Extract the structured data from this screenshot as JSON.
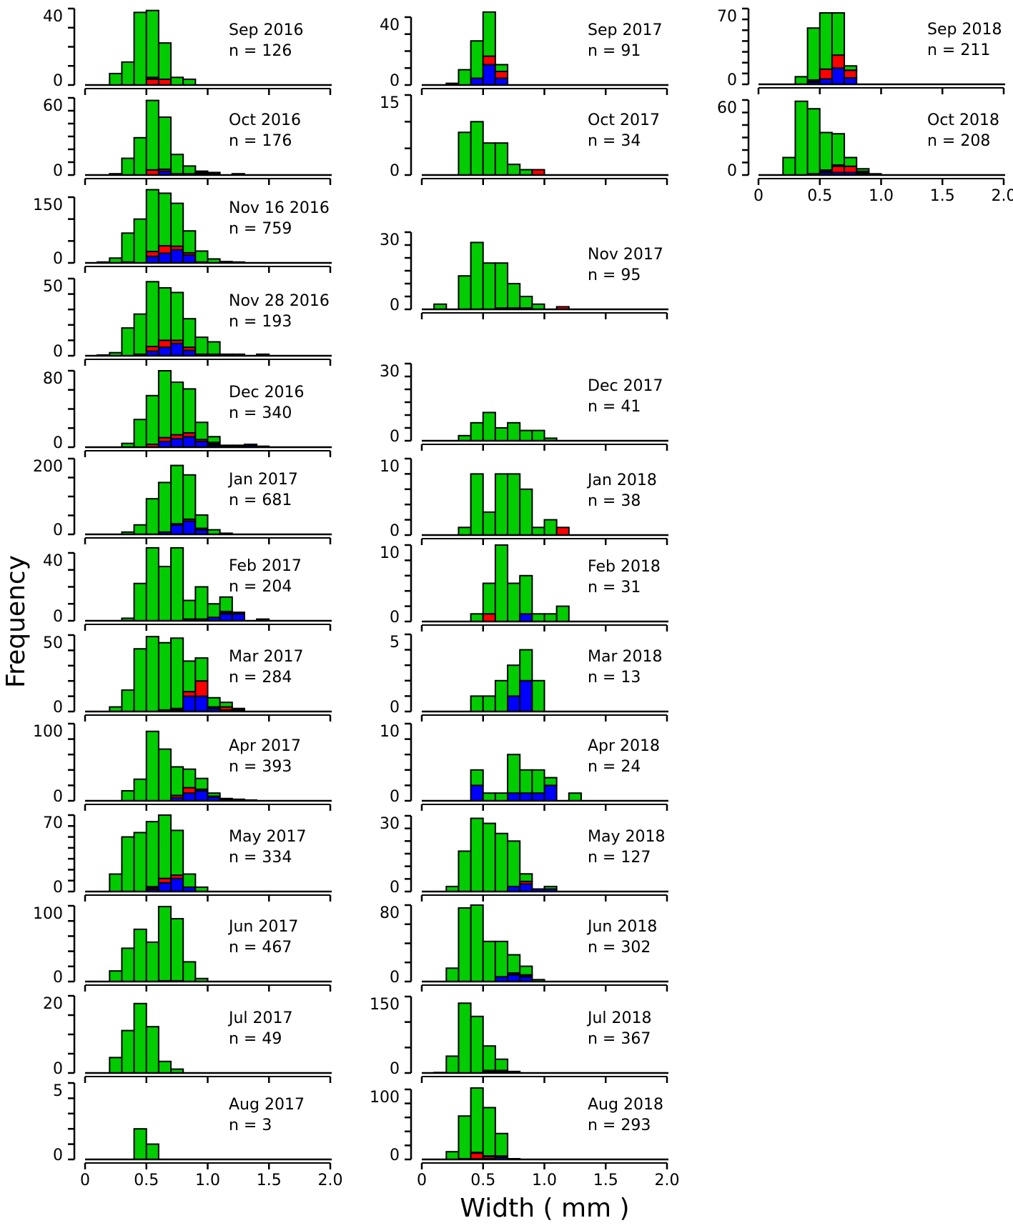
{
  "chart_data": {
    "type": "bar",
    "subtype": "stacked-histogram-panels",
    "xlabel": "Width ( mm )",
    "ylabel": "Frequency",
    "xlim": [
      0,
      2.0
    ],
    "bin_width": 0.1,
    "xtick_labels": [
      "0",
      "0.5",
      "1.0",
      "1.5",
      "2.0"
    ],
    "colors": {
      "green": "#00cc00",
      "red": "#ff0000",
      "blue": "#0000ff",
      "black": "#000000"
    },
    "panels": [
      {
        "label": "Sep 2016",
        "n": "n = 126",
        "ymax": 40,
        "ystep": 10,
        "start": 0.2,
        "total": [
          6,
          12,
          38,
          39,
          22,
          4,
          3
        ],
        "blue": {},
        "red": {
          "0.5": 3,
          "0.6": 3
        },
        "black": {
          "0.5": 1
        }
      },
      {
        "label": "Oct 2016",
        "n": "n = 176",
        "ymax": 60,
        "ystep": 10,
        "start": 0.2,
        "total": [
          1,
          13,
          29,
          58,
          45,
          16,
          7,
          3,
          2,
          0,
          1
        ],
        "blue": {
          "0.6": 3
        },
        "red": {
          "0.5": 4,
          "0.6": 1.5,
          "0.8": 1
        },
        "black": {
          "0.7": 1,
          "0.9": 3,
          "1.0": 2,
          "1.2": 1
        }
      },
      {
        "label": "Nov 16 2016",
        "n": "n = 759",
        "ymax": 150,
        "ystep": 50,
        "start": 0.1,
        "total": [
          2,
          11,
          68,
          100,
          167,
          159,
          136,
          73,
          27,
          9,
          3,
          2
        ],
        "blue": {
          "0.5": 15,
          "0.6": 22,
          "0.7": 30,
          "0.8": 18
        },
        "red": {
          "0.3": 2,
          "0.5": 11,
          "0.6": 17,
          "0.7": 8,
          "0.8": 5,
          "0.9": 2
        },
        "black": {}
      },
      {
        "label": "Nov 28 2016",
        "n": "n = 193",
        "ymax": 50,
        "ystep": 10,
        "start": 0.1,
        "total": [
          0.5,
          2,
          18,
          27,
          48,
          44,
          41,
          24,
          12,
          9,
          1,
          1,
          0,
          1
        ],
        "blue": {
          "0.5": 3,
          "0.6": 5.5,
          "0.7": 8,
          "0.8": 3.5
        },
        "red": {
          "0.5": 3,
          "0.6": 4.5,
          "0.7": 2,
          "0.8": 2
        },
        "black": {
          "0.1": 0.5,
          "0.4": 1,
          "0.9": 1,
          "1.0": 1,
          "1.1": 1,
          "1.2": 1,
          "1.4": 1
        }
      },
      {
        "label": "Dec 2016",
        "n": "n = 340",
        "ymax": 80,
        "ystep": 20,
        "start": 0.3,
        "total": [
          4,
          29,
          54,
          80,
          68,
          61,
          26,
          11,
          2,
          2,
          3,
          1
        ],
        "blue": {
          "0.6": 6,
          "0.7": 9,
          "0.8": 11,
          "0.9": 6,
          "1.0": 2,
          "1.3": 2
        },
        "red": {
          "0.5": 3,
          "0.6": 4,
          "0.7": 4,
          "0.8": 4,
          "0.9": 2
        },
        "black": {
          "1.0": 3,
          "1.1": 2,
          "1.2": 2,
          "1.3": 1,
          "1.4": 1
        }
      },
      {
        "label": "Jan 2017",
        "n": "n = 681",
        "ymax": 200,
        "ystep": 50,
        "start": 0.3,
        "total": [
          6,
          25,
          94,
          137,
          182,
          157,
          51,
          12,
          3
        ],
        "blue": {
          "0.6": 6,
          "0.7": 25,
          "0.8": 35,
          "0.9": 12
        },
        "red": {
          "0.8": 5
        },
        "black": {
          "0.7": 3,
          "0.9": 4
        }
      },
      {
        "label": "Feb 2017",
        "n": "n = 204",
        "ymax": 40,
        "ystep": 10,
        "start": 0.3,
        "total": [
          1.5,
          22,
          43,
          32,
          43,
          12,
          20,
          10,
          14,
          5,
          0,
          1
        ],
        "blue": {
          "0.9": 1,
          "1.0": 2,
          "1.1": 4,
          "1.2": 4
        },
        "red": {},
        "black": {
          "0.8": 1,
          "1.1": 1.5,
          "1.2": 1,
          "1.4": 1
        }
      },
      {
        "label": "Mar 2017",
        "n": "n = 284",
        "ymax": 50,
        "ystep": 10,
        "start": 0.2,
        "total": [
          3,
          14,
          41,
          49,
          45,
          48,
          33,
          35,
          9,
          6,
          2
        ],
        "blue": {
          "0.6": 1,
          "0.7": 1,
          "0.8": 10,
          "0.9": 10,
          "1.0": 2,
          "1.1": 1
        },
        "red": {
          "0.7": 1,
          "0.8": 3,
          "0.9": 10,
          "1.1": 2
        },
        "black": {
          "1.0": 1,
          "1.2": 2
        }
      },
      {
        "label": "Apr 2017",
        "n": "n = 393",
        "ymax": 100,
        "ystep": 20,
        "start": 0.3,
        "total": [
          13,
          28,
          90,
          67,
          44,
          41,
          29,
          10,
          3,
          2,
          1
        ],
        "blue": {
          "0.7": 4,
          "0.8": 10,
          "0.9": 13,
          "1.0": 5
        },
        "red": {
          "0.7": 3,
          "0.8": 7,
          "0.9": 2,
          "1.0": 1
        },
        "black": {
          "1.1": 3,
          "1.2": 2,
          "1.3": 1
        }
      },
      {
        "label": "May 2017",
        "n": "n = 334",
        "ymax": 70,
        "ystep": 10,
        "start": 0.2,
        "total": [
          16,
          50,
          54,
          64,
          70,
          56,
          16,
          4
        ],
        "blue": {
          "0.5": 2,
          "0.6": 8,
          "0.7": 12,
          "0.8": 4
        },
        "red": {
          "0.5": 1.5,
          "0.6": 4,
          "0.7": 3
        },
        "black": {
          "0.5": 1
        }
      },
      {
        "label": "Jun 2017",
        "n": "n = 467",
        "ymax": 100,
        "ystep": 20,
        "start": 0.2,
        "total": [
          14,
          44,
          69,
          52,
          99,
          83,
          26,
          4
        ],
        "blue": {
          "0.7": 1
        },
        "red": {},
        "black": {
          "0.6": 1
        }
      },
      {
        "label": "Jul 2017",
        "n": "n = 49",
        "ymax": 20,
        "ystep": 5,
        "start": 0.2,
        "total": [
          4,
          11,
          18,
          12,
          3,
          1
        ],
        "blue": {},
        "red": {},
        "black": {}
      },
      {
        "label": "Aug 2017",
        "n": "n = 3",
        "ymax": 5,
        "ystep": 1,
        "start": 0.4,
        "total": [
          2,
          1
        ],
        "blue": {},
        "red": {},
        "black": {}
      },
      {
        "label": "Sep 2017",
        "n": "n = 91",
        "ymax": 40,
        "ystep": 10,
        "start": 0.2,
        "total": [
          1,
          9,
          26,
          43,
          12
        ],
        "blue": {
          "0.4": 4,
          "0.5": 12,
          "0.6": 4
        },
        "red": {
          "0.5": 5,
          "0.6": 4
        },
        "black": {
          "0.2": 1
        }
      },
      {
        "label": "Oct 2017",
        "n": "n = 34",
        "ymax": 15,
        "ystep": 5,
        "start": 0.3,
        "total": [
          8,
          10,
          6,
          6,
          2,
          1,
          1
        ],
        "blue": {},
        "red": {
          "0.9": 1
        },
        "black": {}
      },
      {
        "label": "Nov 2017",
        "n": "n = 95",
        "ymax": 30,
        "ystep": 5,
        "start": 0.1,
        "total": [
          2,
          0,
          13,
          26,
          18,
          18,
          10,
          5,
          2,
          0,
          1
        ],
        "blue": {
          "0.6": 0.5,
          "0.7": 0.5,
          "0.8": 0.5
        },
        "red": {
          "1.1": 1
        },
        "black": {}
      },
      {
        "label": "Dec 2017",
        "n": "n = 41",
        "ymax": 30,
        "ystep": 5,
        "start": 0.3,
        "total": [
          2,
          7,
          11,
          5,
          7,
          4,
          4,
          1
        ],
        "blue": {},
        "red": {},
        "black": {}
      },
      {
        "label": "Jan 2018",
        "n": "n = 38",
        "ymax": 10,
        "ystep": 2,
        "start": 0.3,
        "total": [
          1,
          8,
          3,
          8,
          8,
          6,
          1,
          2,
          1
        ],
        "blue": {},
        "red": {
          "1.1": 1
        },
        "black": {}
      },
      {
        "label": "Feb 2018",
        "n": "n = 31",
        "ymax": 10,
        "ystep": 2,
        "start": 0.4,
        "total": [
          1,
          5,
          10,
          5,
          6,
          1,
          1,
          2
        ],
        "blue": {
          "0.8": 1
        },
        "red": {
          "0.5": 1
        },
        "black": {}
      },
      {
        "label": "Mar 2018",
        "n": "n = 13",
        "ymax": 5,
        "ystep": 1,
        "start": 0.4,
        "total": [
          1,
          1,
          2,
          3,
          4,
          2
        ],
        "blue": {
          "0.7": 1,
          "0.8": 2
        },
        "red": {},
        "black": {}
      },
      {
        "label": "Apr 2018",
        "n": "n = 24",
        "ymax": 10,
        "ystep": 2,
        "start": 0.4,
        "total": [
          4,
          1,
          1,
          6,
          4,
          4,
          3,
          0,
          1
        ],
        "blue": {
          "0.4": 2,
          "0.7": 1,
          "0.8": 1,
          "0.9": 1,
          "1.0": 2
        },
        "red": {},
        "black": {}
      },
      {
        "label": "May 2018",
        "n": "n = 127",
        "ymax": 30,
        "ystep": 5,
        "start": 0.2,
        "total": [
          2,
          16,
          29,
          27,
          23,
          20,
          7,
          1,
          2
        ],
        "blue": {
          "0.7": 2,
          "0.8": 3,
          "0.9": 1,
          "1.0": 1
        },
        "red": {
          "0.8": 1
        },
        "black": {}
      },
      {
        "label": "Jun 2018",
        "n": "n = 302",
        "ymax": 80,
        "ystep": 20,
        "start": 0.2,
        "total": [
          14,
          77,
          80,
          42,
          42,
          28,
          16,
          2
        ],
        "blue": {
          "0.6": 5,
          "0.7": 7,
          "0.8": 5
        },
        "red": {
          "0.8": 1
        },
        "black": {
          "0.7": 2,
          "0.8": 1
        }
      },
      {
        "label": "Jul 2018",
        "n": "n = 367",
        "ymax": 150,
        "ystep": 50,
        "start": 0.1,
        "total": [
          1,
          33,
          137,
          111,
          53,
          27,
          3
        ],
        "blue": {
          "0.6": 1
        },
        "red": {
          "0.5": 3,
          "0.6": 3
        },
        "black": {
          "0.1": 1,
          "0.5": 2,
          "0.6": 1,
          "0.7": 3
        }
      },
      {
        "label": "Aug 2018",
        "n": "n = 293",
        "ymax": 100,
        "ystep": 20,
        "start": 0.2,
        "total": [
          11,
          62,
          102,
          74,
          37,
          1
        ],
        "blue": {
          "0.4": 1,
          "0.5": 1,
          "0.6": 3
        },
        "red": {
          "0.4": 8,
          "0.5": 3,
          "0.6": 2
        },
        "black": {
          "0.3": 1,
          "0.4": 1,
          "0.5": 1,
          "0.7": 1
        }
      },
      {
        "label": "Sep 2018",
        "n": "n = 211",
        "ymax": 70,
        "ystep": 10,
        "start": 0.3,
        "total": [
          7,
          52,
          66,
          66,
          17
        ],
        "blue": {
          "0.4": 2,
          "0.5": 5,
          "0.6": 15,
          "0.7": 6
        },
        "red": {
          "0.4": 1,
          "0.5": 9,
          "0.6": 12,
          "0.7": 7
        },
        "black": {
          "0.4": 1
        }
      },
      {
        "label": "Oct 2018",
        "n": "n = 208",
        "ymax": 60,
        "ystep": 10,
        "start": 0.2,
        "total": [
          14,
          59,
          53,
          34,
          33,
          14,
          5,
          1
        ],
        "blue": {
          "0.5": 2,
          "0.6": 2,
          "0.7": 2,
          "0.8": 1
        },
        "red": {
          "0.6": 5,
          "0.7": 5,
          "0.8": 1
        },
        "black": {
          "0.4": 1,
          "0.5": 2,
          "0.6": 1,
          "0.8": 1,
          "0.9": 1
        }
      }
    ]
  }
}
